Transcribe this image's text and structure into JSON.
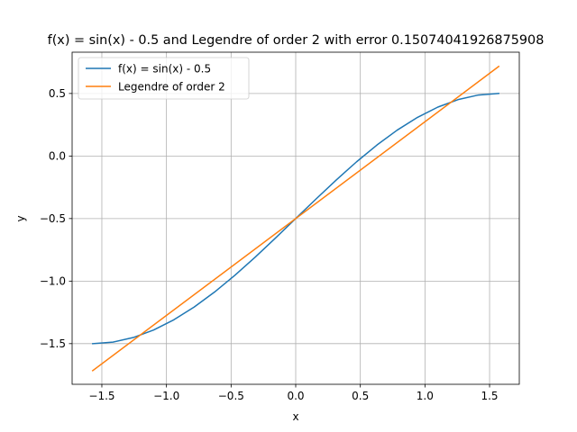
{
  "chart_data": {
    "type": "line",
    "title": "f(x) = sin(x) - 0.5 and Legendre of order 2 with error 0.15074041926875908",
    "xlabel": "x",
    "ylabel": "y",
    "xlim": [
      -1.73,
      1.73
    ],
    "ylim": [
      -1.825,
      0.83
    ],
    "xticks": [
      -1.5,
      -1.0,
      -0.5,
      0.0,
      0.5,
      1.0,
      1.5
    ],
    "xtick_labels": [
      "−1.5",
      "−1.0",
      "−0.5",
      "0.0",
      "0.5",
      "1.0",
      "1.5"
    ],
    "yticks": [
      -1.5,
      -1.0,
      -0.5,
      0.0,
      0.5
    ],
    "ytick_labels": [
      "−1.5",
      "−1.0",
      "−0.5",
      "0.0",
      "0.5"
    ],
    "grid": true,
    "legend_position": "upper-left",
    "series": [
      {
        "name": "f(x) = sin(x) - 0.5",
        "color": "#1f77b4",
        "x": [
          -1.5708,
          -1.4137,
          -1.2566,
          -1.0996,
          -0.9425,
          -0.7854,
          -0.6283,
          -0.4712,
          -0.3142,
          -0.1571,
          0.0,
          0.1571,
          0.3142,
          0.4712,
          0.6283,
          0.7854,
          0.9425,
          1.0996,
          1.2566,
          1.4137,
          1.5708
        ],
        "y": [
          -1.5,
          -1.4877,
          -1.4511,
          -1.391,
          -1.309,
          -1.2071,
          -1.0878,
          -0.954,
          -0.809,
          -0.6564,
          -0.5,
          -0.3436,
          -0.191,
          -0.046,
          0.0878,
          0.2071,
          0.309,
          0.391,
          0.4511,
          0.4877,
          0.5
        ]
      },
      {
        "name": "Legendre of order 2",
        "color": "#ff7f0e",
        "x": [
          -1.5708,
          1.5708
        ],
        "y": [
          -1.7159,
          0.7159
        ]
      }
    ]
  }
}
